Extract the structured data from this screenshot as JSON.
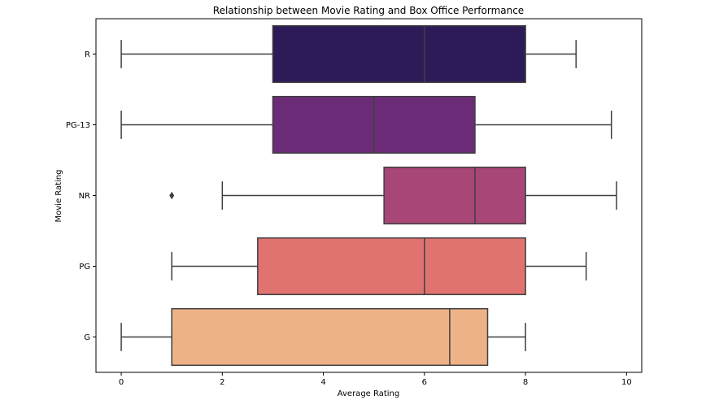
{
  "chart_data": {
    "type": "boxplot",
    "orientation": "horizontal",
    "title": "Relationship between Movie Rating and Box Office Performance",
    "xlabel": "Average Rating",
    "ylabel": "Movie Rating",
    "xlim": [
      -0.5,
      10.3
    ],
    "xticks": [
      0,
      2,
      4,
      6,
      8,
      10
    ],
    "grid": false,
    "categories": [
      "R",
      "PG-13",
      "NR",
      "PG",
      "G"
    ],
    "boxes": [
      {
        "category": "R",
        "whisker_low": 0,
        "q1": 3,
        "median": 6,
        "q3": 8,
        "whisker_high": 9,
        "outliers": [],
        "color": "#2d1b58"
      },
      {
        "category": "PG-13",
        "whisker_low": 0,
        "q1": 3,
        "median": 5,
        "q3": 7,
        "whisker_high": 9.7,
        "outliers": [],
        "color": "#6c2b77"
      },
      {
        "category": "NR",
        "whisker_low": 2,
        "q1": 5.2,
        "median": 7,
        "q3": 8,
        "whisker_high": 9.8,
        "outliers": [
          1
        ],
        "color": "#a84677"
      },
      {
        "category": "PG",
        "whisker_low": 1,
        "q1": 2.7,
        "median": 6,
        "q3": 8,
        "whisker_high": 9.2,
        "outliers": [],
        "color": "#e07370"
      },
      {
        "category": "G",
        "whisker_low": 0,
        "q1": 1,
        "median": 6.5,
        "q3": 7.25,
        "whisker_high": 8,
        "outliers": [],
        "color": "#eeb287"
      }
    ]
  }
}
